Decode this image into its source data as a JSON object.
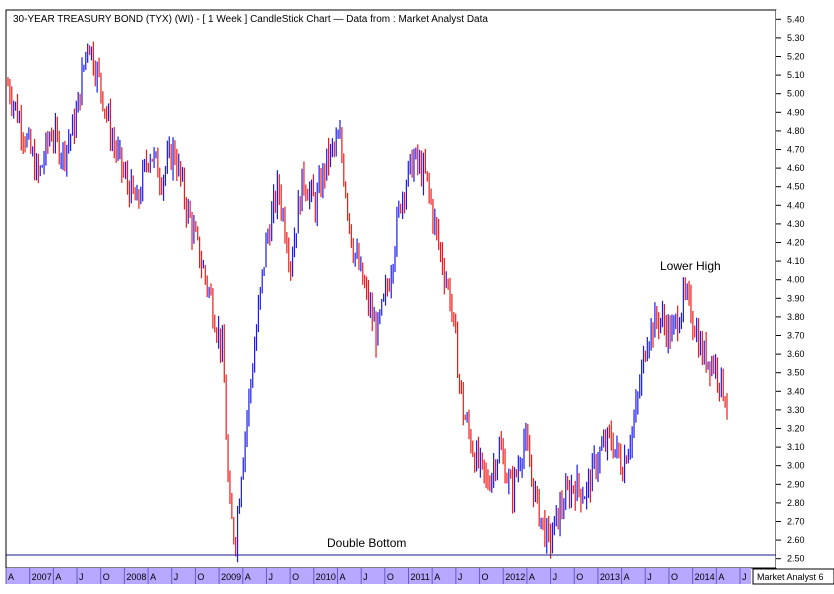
{
  "chart_data": {
    "type": "candlestick",
    "title": "30-YEAR TREASURY BOND (TYX) (WI) -  [ 1 Week ] CandleStick Chart — Data from : Market Analyst Data",
    "ylim": [
      2.45,
      5.45
    ],
    "y_ticks": [
      "5.40",
      "5.30",
      "5.20",
      "5.10",
      "5.00",
      "4.90",
      "4.80",
      "4.70",
      "4.60",
      "4.50",
      "4.40",
      "4.30",
      "4.20",
      "4.10",
      "4.00",
      "3.90",
      "3.80",
      "3.70",
      "3.60",
      "3.50",
      "3.40",
      "3.30",
      "3.20",
      "3.10",
      "3.00",
      "2.90",
      "2.80",
      "2.70",
      "2.60",
      "2.50"
    ],
    "x_ticks": [
      "A",
      "2007",
      "A",
      "J",
      "O",
      "2008",
      "A",
      "J",
      "O",
      "2009",
      "A",
      "J",
      "O",
      "2010",
      "A",
      "J",
      "O",
      "2011",
      "A",
      "J",
      "O",
      "2012",
      "A",
      "J",
      "O",
      "2013",
      "A",
      "J",
      "O",
      "2014",
      "A",
      "J"
    ],
    "up_color": "#1a1aee",
    "down_color": "#ee1a1a",
    "price_path": [
      [
        0,
        5.05
      ],
      [
        3,
        4.75
      ],
      [
        5,
        4.55
      ],
      [
        7,
        4.8
      ],
      [
        9,
        4.68
      ],
      [
        11,
        4.85
      ],
      [
        13,
        5.3
      ],
      [
        15,
        5.05
      ],
      [
        17,
        4.75
      ],
      [
        19,
        4.55
      ],
      [
        21,
        4.4
      ],
      [
        23,
        4.7
      ],
      [
        25,
        4.55
      ],
      [
        27,
        4.7
      ],
      [
        29,
        4.4
      ],
      [
        31,
        4.15
      ],
      [
        33,
        3.9
      ],
      [
        35,
        3.6
      ],
      [
        36,
        2.75
      ],
      [
        37,
        2.6
      ],
      [
        38,
        3.0
      ],
      [
        40,
        3.6
      ],
      [
        42,
        4.2
      ],
      [
        44,
        4.5
      ],
      [
        46,
        4.1
      ],
      [
        48,
        4.55
      ],
      [
        50,
        4.4
      ],
      [
        52,
        4.65
      ],
      [
        54,
        4.75
      ],
      [
        56,
        4.2
      ],
      [
        58,
        3.95
      ],
      [
        60,
        3.7
      ],
      [
        62,
        4.0
      ],
      [
        64,
        4.45
      ],
      [
        66,
        4.65
      ],
      [
        68,
        4.55
      ],
      [
        70,
        4.2
      ],
      [
        72,
        3.9
      ],
      [
        74,
        3.3
      ],
      [
        76,
        3.05
      ],
      [
        78,
        2.9
      ],
      [
        80,
        3.1
      ],
      [
        82,
        2.85
      ],
      [
        84,
        3.15
      ],
      [
        86,
        2.8
      ],
      [
        88,
        2.58
      ],
      [
        90,
        2.78
      ],
      [
        92,
        2.9
      ],
      [
        94,
        2.85
      ],
      [
        96,
        3.05
      ],
      [
        98,
        3.15
      ],
      [
        100,
        3.0
      ],
      [
        102,
        3.25
      ],
      [
        104,
        3.7
      ],
      [
        106,
        3.8
      ],
      [
        108,
        3.7
      ],
      [
        110,
        3.9
      ],
      [
        111,
        3.85
      ],
      [
        113,
        3.6
      ],
      [
        115,
        3.55
      ],
      [
        117,
        3.35
      ]
    ],
    "annotations": [
      {
        "text": "Lower High"
      },
      {
        "text": "Double Bottom"
      }
    ],
    "reference_line": {
      "y": 2.52
    }
  },
  "footer": {
    "brand": "Market Analyst 6"
  }
}
